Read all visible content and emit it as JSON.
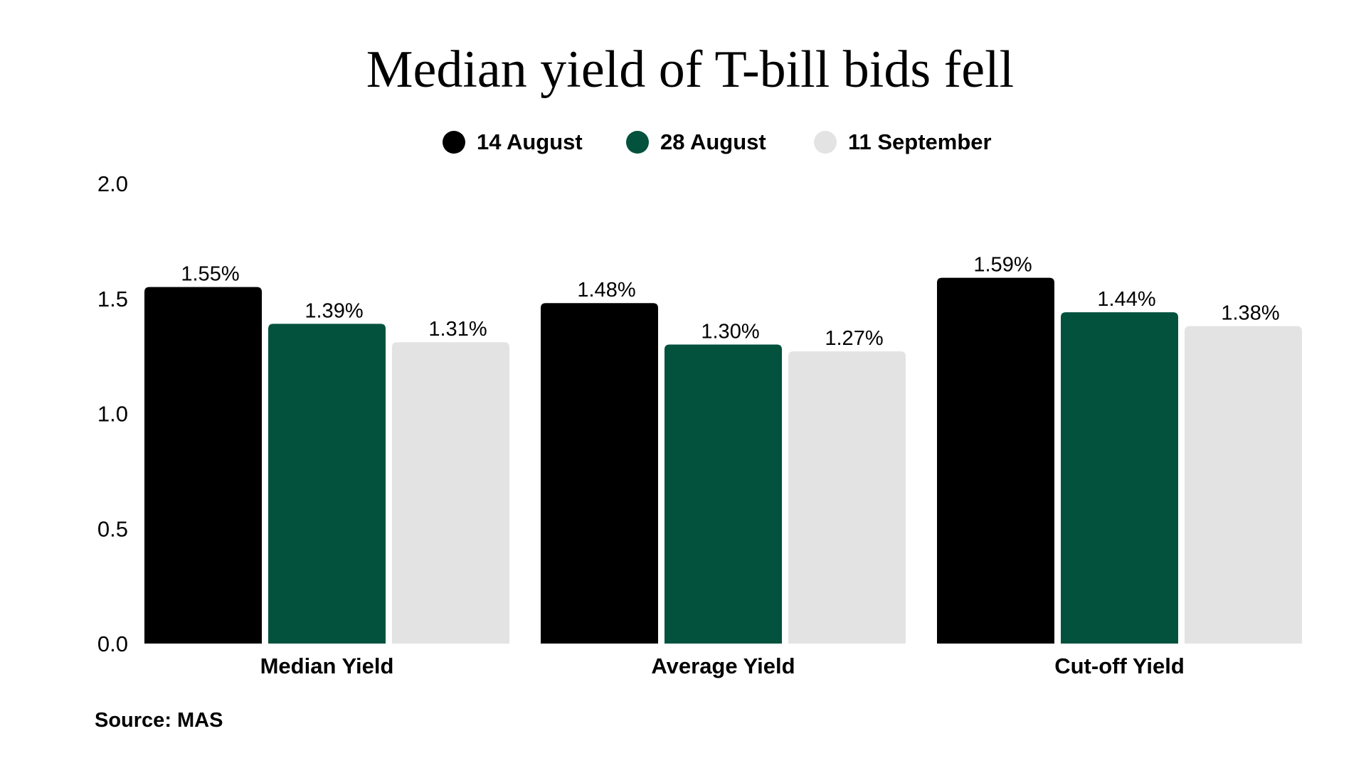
{
  "chart_data": {
    "type": "bar",
    "title": "Median yield of T-bill bids fell",
    "categories": [
      "Median Yield",
      "Average Yield",
      "Cut-off Yield"
    ],
    "series": [
      {
        "name": "14 August",
        "color": "#000000",
        "values": [
          1.55,
          1.48,
          1.59
        ],
        "labels": [
          "1.55%",
          "1.48%",
          "1.59%"
        ]
      },
      {
        "name": "28 August",
        "color": "#02523D",
        "values": [
          1.39,
          1.3,
          1.44
        ],
        "labels": [
          "1.39%",
          "1.30%",
          "1.44%"
        ]
      },
      {
        "name": "11 September",
        "color": "#E3E3E3",
        "values": [
          1.31,
          1.27,
          1.38
        ],
        "labels": [
          "1.31%",
          "1.27%",
          "1.38%"
        ]
      }
    ],
    "ylim": [
      0,
      2.0
    ],
    "yticks": [
      "0.0",
      "0.5",
      "1.0",
      "1.5",
      "2.0"
    ],
    "xlabel": "",
    "ylabel": "",
    "grid": false,
    "legend_position": "top-center"
  },
  "source": "Source: MAS"
}
